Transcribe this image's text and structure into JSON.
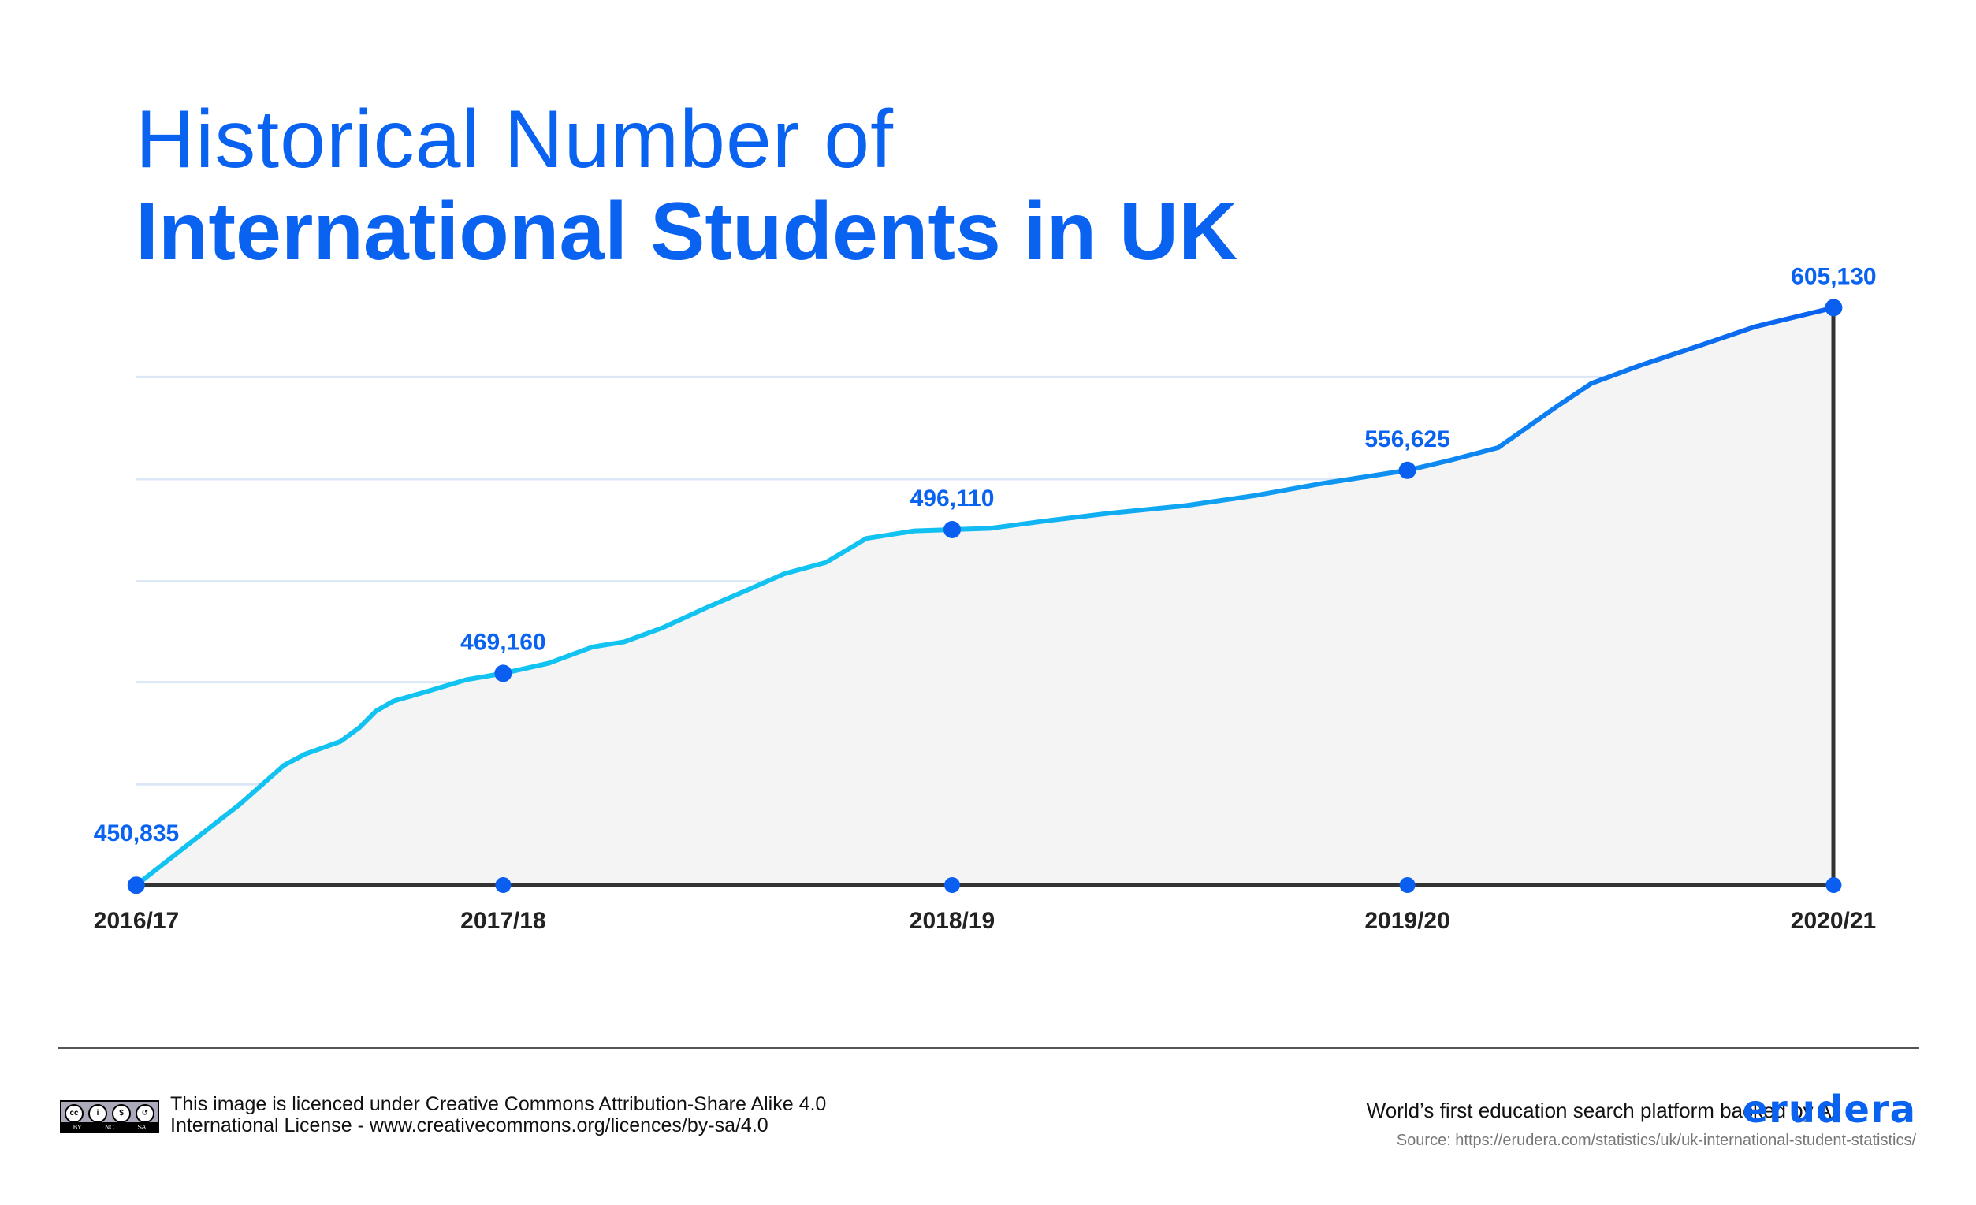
{
  "title_line1": "Historical Number of",
  "title_line2": "International Students in UK",
  "chart_data": {
    "type": "line",
    "title": "Historical Number of International Students in UK",
    "categories": [
      "2016/17",
      "2017/18",
      "2018/19",
      "2019/20",
      "2020/21"
    ],
    "values": [
      450835,
      469160,
      496110,
      556625,
      605130
    ],
    "data_labels": [
      "450,835",
      "469,160",
      "496,110",
      "556,625",
      "605,130"
    ],
    "grid": true,
    "area_fill": true,
    "colors": {
      "line_start": "#12c3f2",
      "line_end": "#0a5ff0",
      "points": "#0a5ff0",
      "labels": "#0a63f0",
      "area": "#f4f4f5",
      "axis": "#333333",
      "grid": "#dbe6f7"
    }
  },
  "footer": {
    "license_line1": "This image is licenced under Creative Commons Attribution-Share Alike 4.0",
    "license_line2": "International License - www.creativecommons.org/licences/by-sa/4.0",
    "cc_badge": [
      "BY",
      "NC",
      "SA"
    ],
    "tagline": "World’s first education search platform backed by AI",
    "logo": "erudera",
    "source": "Source: https://erudera.com/statistics/uk/uk-international-student-statistics/"
  }
}
